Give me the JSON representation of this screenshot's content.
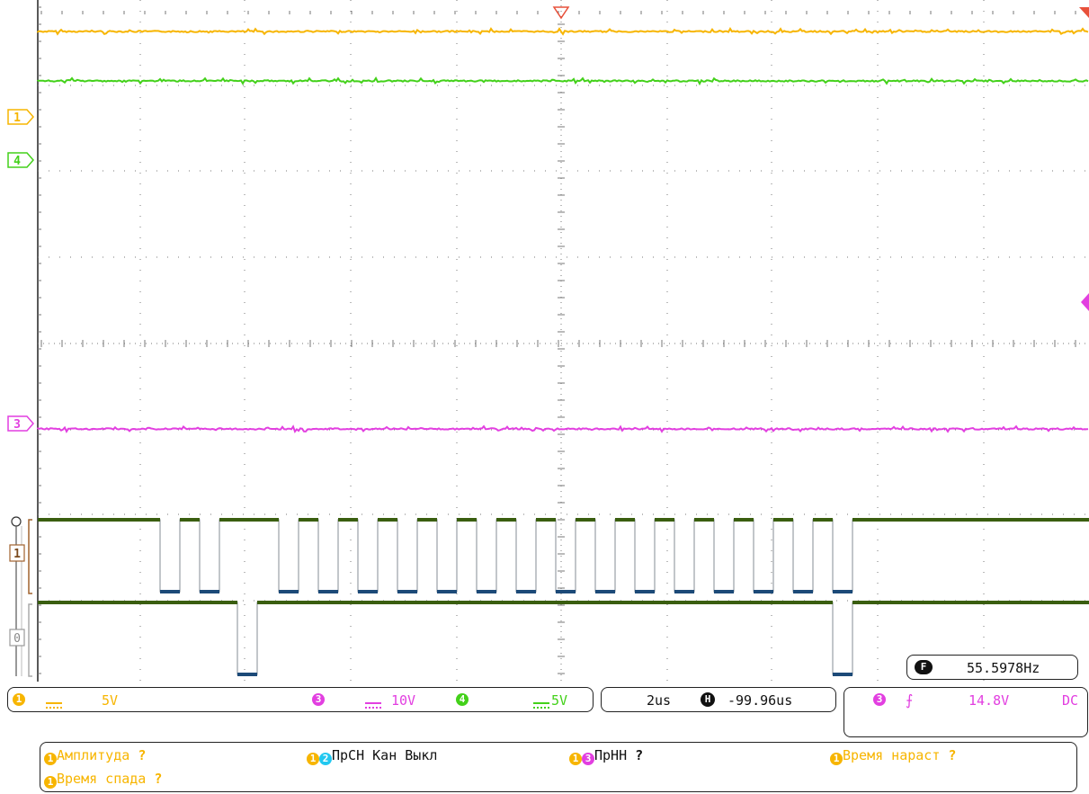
{
  "colors": {
    "ch1": "#f7b500",
    "ch4": "#43d11a",
    "ch3": "#e23fe0",
    "digital": "#3a5e10",
    "digital_low": "#1c4a78",
    "grid": "#777777",
    "frame": "#222222"
  },
  "markers": {
    "ch1": "1",
    "ch4": "4",
    "ch3": "3",
    "digital_d1": "1",
    "digital_d0": "0"
  },
  "channels_bar": {
    "ch1_badge": "1",
    "ch1_scale": "5V",
    "ch3_badge": "3",
    "ch3_scale": "10V",
    "ch4_badge": "4",
    "ch4_scale": "5V"
  },
  "timebase": {
    "scale": "2us",
    "h_badge": "H",
    "position": "-99.96us"
  },
  "trigger": {
    "source_badge": "3",
    "slope_icon": "rising-edge-icon",
    "level": "14.8V",
    "coupling": "DC"
  },
  "frequency": {
    "badge": "F",
    "value": "55.5978Hz"
  },
  "measurements": [
    {
      "badges": [
        "1"
      ],
      "label": "Амплитуда",
      "value": "?"
    },
    {
      "badges": [
        "1",
        "2"
      ],
      "label": "ПрСН Кан Выкл",
      "value": ""
    },
    {
      "badges": [
        "1",
        "3"
      ],
      "label": "ПрНН",
      "value": "?"
    },
    {
      "badges": [
        "1"
      ],
      "label": "Время нараст",
      "value": "?"
    },
    {
      "badges": [
        "1"
      ],
      "label": "Время спада",
      "value": "?"
    }
  ]
}
